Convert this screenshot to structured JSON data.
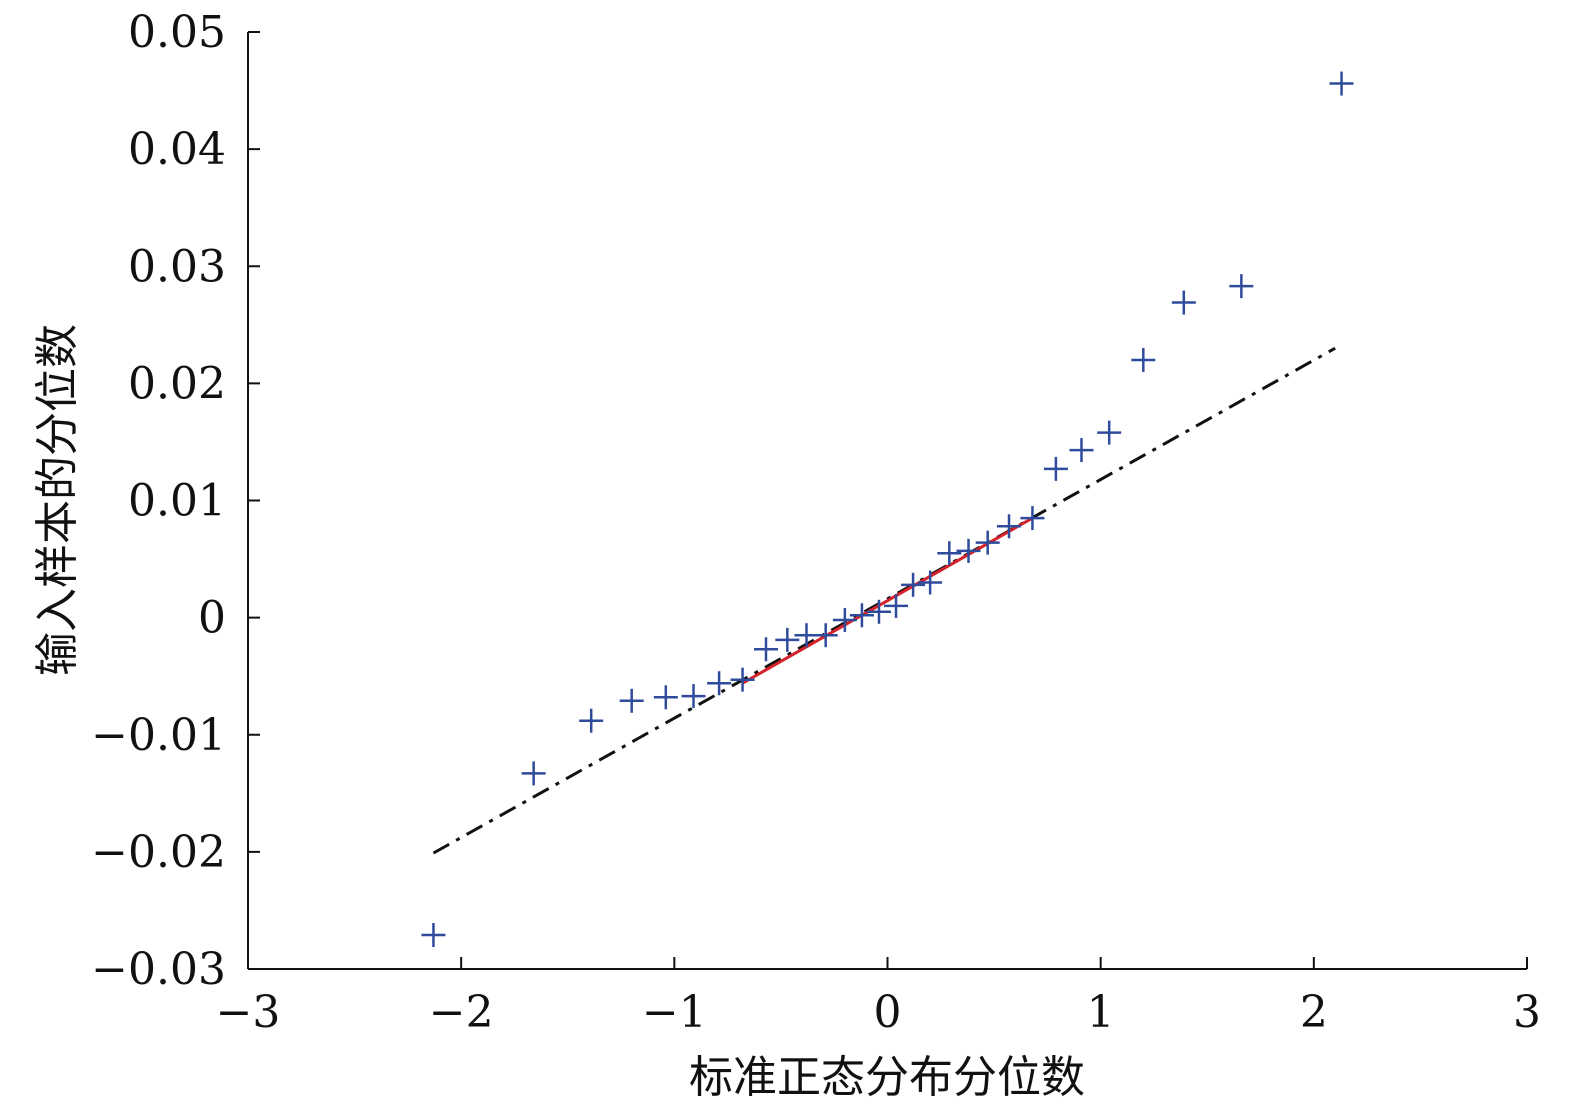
{
  "chart_data": {
    "type": "scatter",
    "title": "",
    "xlabel": "标准正态分布分位数",
    "ylabel": "输入样本的分位数",
    "xlim": [
      -3,
      3
    ],
    "ylim": [
      -0.03,
      0.05
    ],
    "xticks": [
      -3,
      -2,
      -1,
      0,
      1,
      2,
      3
    ],
    "xtick_labels": [
      "−3",
      "−2",
      "−1",
      "0",
      "1",
      "2",
      "3"
    ],
    "yticks": [
      -0.03,
      -0.02,
      -0.01,
      0,
      0.01,
      0.02,
      0.03,
      0.04,
      0.05
    ],
    "ytick_labels": [
      "−0.03",
      "−0.02",
      "−0.01",
      "0",
      "0.01",
      "0.02",
      "0.03",
      "0.04",
      "0.05"
    ],
    "grid": false,
    "colors": {
      "points": "#2f4c9c",
      "fit_line": "#d4232a",
      "reference_line": "#111111",
      "axis": "#111111"
    },
    "series": [
      {
        "type": "scatter",
        "marker": "+",
        "x": [
          -2.13,
          -1.66,
          -1.39,
          -1.2,
          -1.04,
          -0.91,
          -0.79,
          -0.68,
          -0.57,
          -0.47,
          -0.38,
          -0.29,
          -0.2,
          -0.12,
          -0.04,
          0.04,
          0.12,
          0.2,
          0.29,
          0.38,
          0.47,
          0.57,
          0.68,
          0.79,
          0.91,
          1.04,
          1.2,
          1.39,
          1.66,
          2.13
        ],
        "y": [
          -0.0271,
          -0.0133,
          -0.0088,
          -0.0071,
          -0.0068,
          -0.0067,
          -0.0056,
          -0.0053,
          -0.0027,
          -0.0019,
          -0.0015,
          -0.0015,
          -0.0002,
          0.0002,
          0.0005,
          0.001,
          0.0028,
          0.003,
          0.0055,
          0.0057,
          0.0064,
          0.0078,
          0.0085,
          0.0127,
          0.0143,
          0.0158,
          0.022,
          0.0269,
          0.0283,
          0.0456
        ]
      },
      {
        "type": "line",
        "style": "dash-dot",
        "x": [
          -2.13,
          2.1
        ],
        "y": [
          -0.0201,
          0.023
        ]
      },
      {
        "type": "line",
        "style": "solid",
        "x": [
          -0.68,
          0.68
        ],
        "y": [
          -0.0056,
          0.0085
        ]
      }
    ]
  }
}
